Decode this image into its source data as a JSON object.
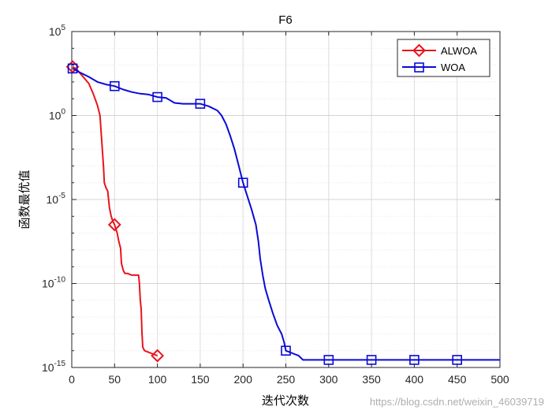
{
  "chart_data": {
    "type": "line",
    "title": "F6",
    "xlabel": "迭代次数",
    "ylabel": "函数最优值",
    "xlim": [
      0,
      500
    ],
    "ylim_exp": [
      -15,
      5
    ],
    "yscale": "log",
    "xticks": [
      0,
      50,
      100,
      150,
      200,
      250,
      300,
      350,
      400,
      450,
      500
    ],
    "yticks": [
      {
        "exp": -15,
        "base": "10",
        "sup": "-15"
      },
      {
        "exp": -10,
        "base": "10",
        "sup": "-10"
      },
      {
        "exp": -5,
        "base": "10",
        "sup": "-5"
      },
      {
        "exp": 0,
        "base": "10",
        "sup": "0"
      },
      {
        "exp": 5,
        "base": "10",
        "sup": "5"
      }
    ],
    "grid": true,
    "legend_position": "top-right",
    "series": [
      {
        "name": "ALWOA",
        "color": "#e8141c",
        "marker": "diamond",
        "marker_x": [
          1,
          50,
          100
        ],
        "points": [
          [
            1,
            2.9
          ],
          [
            5,
            2.8
          ],
          [
            10,
            2.5
          ],
          [
            15,
            2.2
          ],
          [
            20,
            1.9
          ],
          [
            25,
            1.3
          ],
          [
            30,
            0.6
          ],
          [
            33,
            0.0
          ],
          [
            35,
            -1.5
          ],
          [
            37,
            -3.0
          ],
          [
            38,
            -4.0
          ],
          [
            40,
            -4.3
          ],
          [
            42,
            -4.5
          ],
          [
            44,
            -5.5
          ],
          [
            46,
            -6.0
          ],
          [
            48,
            -6.3
          ],
          [
            50,
            -6.5
          ],
          [
            53,
            -7.0
          ],
          [
            55,
            -7.5
          ],
          [
            57,
            -7.9
          ],
          [
            58,
            -8.8
          ],
          [
            60,
            -9.2
          ],
          [
            62,
            -9.4
          ],
          [
            65,
            -9.4
          ],
          [
            70,
            -9.5
          ],
          [
            78,
            -9.5
          ],
          [
            79,
            -10.0
          ],
          [
            80,
            -11.0
          ],
          [
            81,
            -11.5
          ],
          [
            82,
            -13.0
          ],
          [
            83,
            -13.8
          ],
          [
            85,
            -14.0
          ],
          [
            90,
            -14.1
          ],
          [
            95,
            -14.2
          ],
          [
            100,
            -14.3
          ]
        ]
      },
      {
        "name": "WOA",
        "color": "#0a0ad6",
        "marker": "square",
        "marker_x": [
          1,
          50,
          100,
          150,
          200,
          250,
          300,
          350,
          400,
          450
        ],
        "points": [
          [
            1,
            2.8
          ],
          [
            10,
            2.55
          ],
          [
            20,
            2.3
          ],
          [
            30,
            2.0
          ],
          [
            40,
            1.85
          ],
          [
            50,
            1.75
          ],
          [
            60,
            1.55
          ],
          [
            70,
            1.4
          ],
          [
            80,
            1.3
          ],
          [
            90,
            1.25
          ],
          [
            100,
            1.1
          ],
          [
            110,
            1.05
          ],
          [
            115,
            0.9
          ],
          [
            120,
            0.75
          ],
          [
            130,
            0.7
          ],
          [
            140,
            0.7
          ],
          [
            150,
            0.7
          ],
          [
            160,
            0.55
          ],
          [
            170,
            0.3
          ],
          [
            175,
            0.0
          ],
          [
            180,
            -0.5
          ],
          [
            185,
            -1.2
          ],
          [
            190,
            -2.0
          ],
          [
            195,
            -3.0
          ],
          [
            200,
            -4.0
          ],
          [
            205,
            -4.8
          ],
          [
            210,
            -5.6
          ],
          [
            215,
            -6.5
          ],
          [
            218,
            -7.5
          ],
          [
            220,
            -8.5
          ],
          [
            223,
            -9.5
          ],
          [
            226,
            -10.3
          ],
          [
            230,
            -11.0
          ],
          [
            235,
            -11.8
          ],
          [
            240,
            -12.5
          ],
          [
            245,
            -13.0
          ],
          [
            248,
            -13.5
          ],
          [
            250,
            -14.0
          ],
          [
            255,
            -14.1
          ],
          [
            260,
            -14.2
          ],
          [
            265,
            -14.3
          ],
          [
            270,
            -14.55
          ],
          [
            300,
            -14.55
          ],
          [
            350,
            -14.55
          ],
          [
            400,
            -14.55
          ],
          [
            450,
            -14.55
          ],
          [
            500,
            -14.55
          ]
        ]
      }
    ]
  },
  "watermark": "https://blog.csdn.net/weixin_46039719"
}
